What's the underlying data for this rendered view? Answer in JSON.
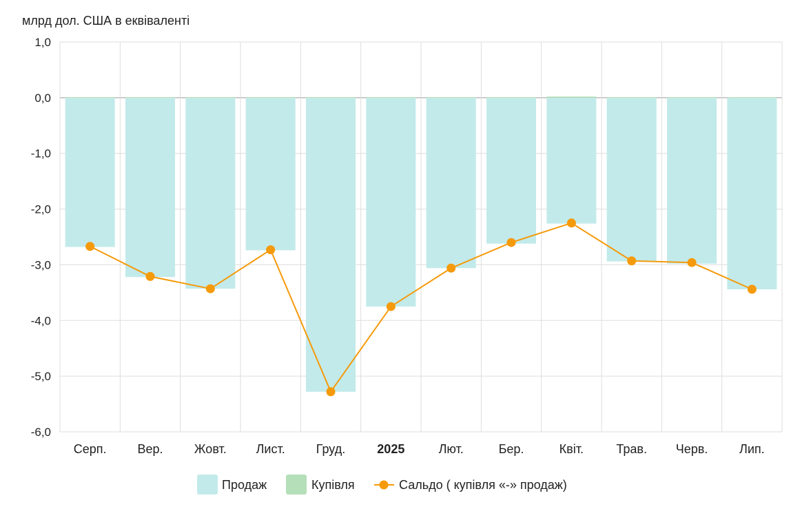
{
  "chart_data": {
    "type": "bar",
    "ylabel": "млрд дол. США в еквіваленті",
    "ylim": [
      -6,
      1
    ],
    "yticks": [
      1,
      0,
      -1,
      -2,
      -3,
      -4,
      -5,
      -6
    ],
    "ytick_labels": [
      "1,0",
      "0,0",
      "-1,0",
      "-2,0",
      "-3,0",
      "-4,0",
      "-5,0",
      "-6,0"
    ],
    "grid": true,
    "categories": [
      "Серп.",
      "Вер.",
      "Жовт.",
      "Лист.",
      "Груд.",
      "2025",
      "Лют.",
      "Бер.",
      "Квіт.",
      "Трав.",
      "Черв.",
      "Лип."
    ],
    "bold_categories": [
      "2025"
    ],
    "legend_position": "bottom",
    "series": [
      {
        "name": "Продаж",
        "type": "bar",
        "color": "#c2eaea",
        "values": [
          -2.68,
          -3.22,
          -3.43,
          -2.74,
          -5.28,
          -3.75,
          -3.06,
          -2.62,
          -2.26,
          -2.94,
          -2.98,
          -3.44
        ]
      },
      {
        "name": "Купівля",
        "type": "bar",
        "color": "#b5dfb8",
        "values": [
          0.01,
          0.01,
          0.01,
          0.01,
          0.01,
          0.01,
          0.01,
          0.01,
          0.02,
          0.01,
          0.01,
          0.01
        ]
      },
      {
        "name": "Сальдо ( купівля «-» продаж)",
        "type": "line",
        "color": "#f59a0b",
        "values": [
          -2.67,
          -3.21,
          -3.43,
          -2.73,
          -5.28,
          -3.75,
          -3.06,
          -2.6,
          -2.25,
          -2.93,
          -2.96,
          -3.44
        ]
      }
    ]
  }
}
